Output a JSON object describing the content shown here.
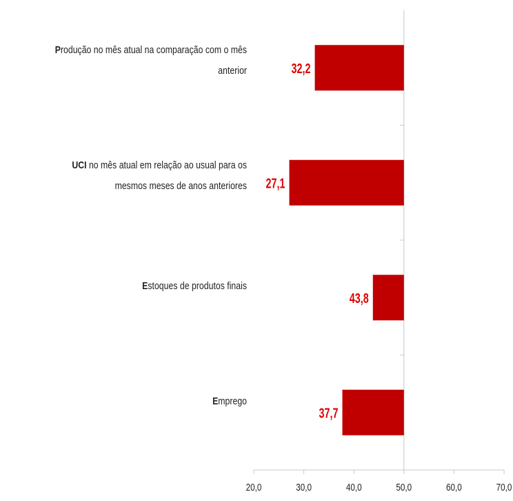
{
  "chart_data": {
    "type": "bar",
    "orientation": "horizontal",
    "baseline": 50,
    "categories": [
      {
        "label_bold": "P",
        "label_rest": "rodução no mês atual na comparação com o mês anterior"
      },
      {
        "label_bold": "UCI",
        "label_rest": " no mês atual em relação ao usual para os mesmos meses de anos anteriores"
      },
      {
        "label_bold": "E",
        "label_rest": "stoques de produtos finais"
      },
      {
        "label_bold": "E",
        "label_rest": "mprego"
      }
    ],
    "values": [
      32.2,
      27.1,
      43.8,
      37.7
    ],
    "value_labels": [
      "32,2",
      "27,1",
      "43,8",
      "37,7"
    ],
    "xlim": [
      20,
      70
    ],
    "xticks": [
      "20,0",
      "30,0",
      "40,0",
      "50,0",
      "60,0",
      "70,0"
    ],
    "bar_color": "#c00000",
    "label_color": "#e00000",
    "axis_color": "#c8c8c8"
  }
}
